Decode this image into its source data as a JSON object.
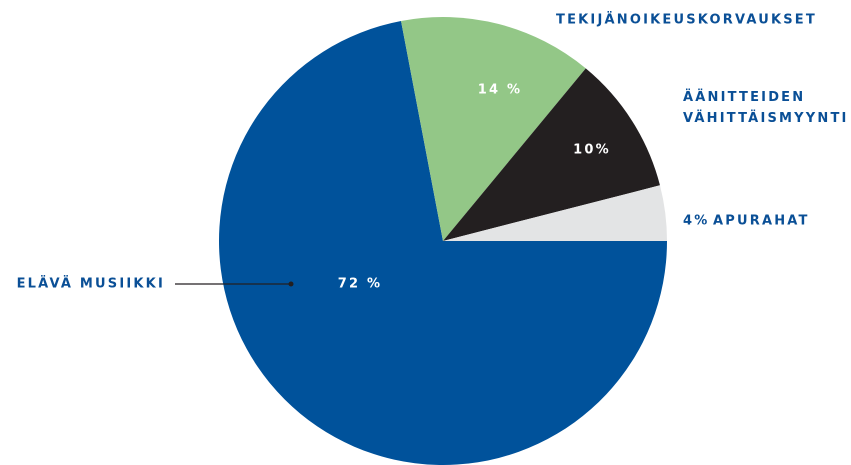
{
  "chart_data": {
    "type": "pie",
    "categories": [
      "ELÄVÄ MUSIIKKI",
      "TEKIJÄNOIKEUSKORVAUKSET",
      "ÄÄNITTEIDEN VÄHITTÄISMYYNTI",
      "APURAHAT"
    ],
    "values": [
      72,
      14,
      10,
      4
    ],
    "value_labels": [
      "72 %",
      "14 %",
      "10%",
      "4%"
    ],
    "colors": [
      "#00529b",
      "#93c787",
      "#231f20",
      "#e3e4e5"
    ]
  }
}
